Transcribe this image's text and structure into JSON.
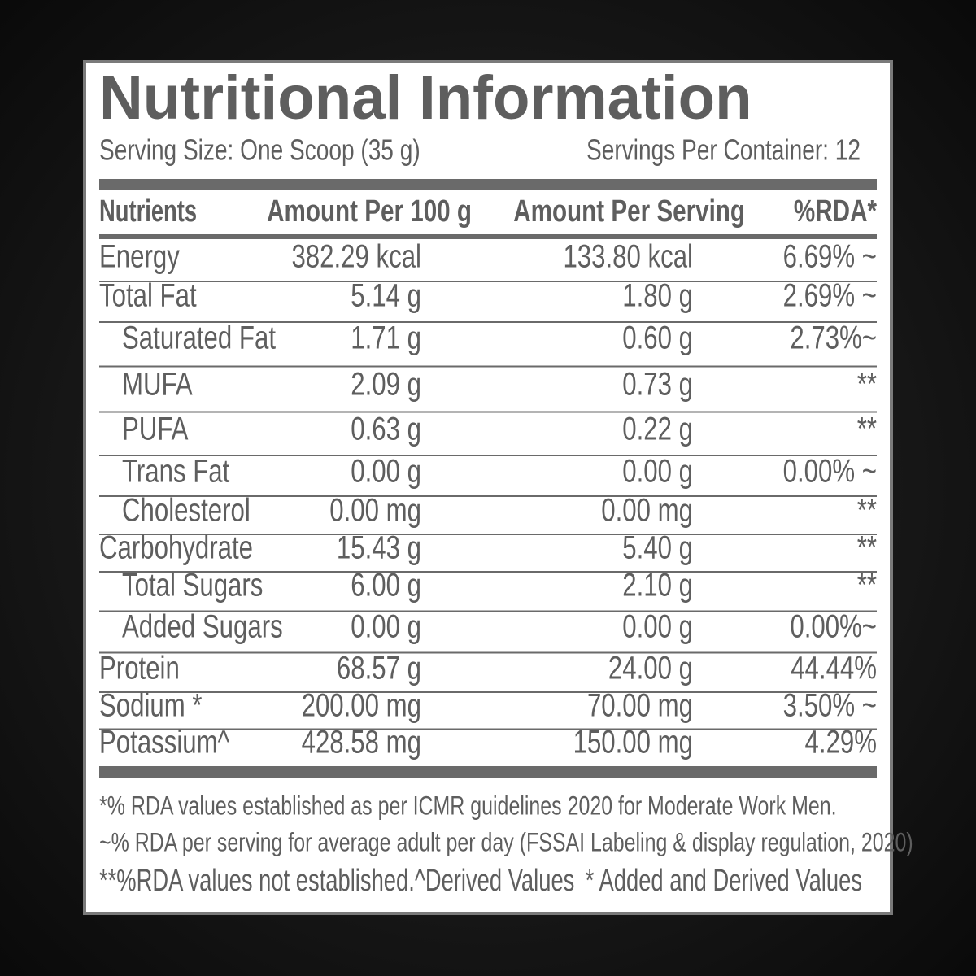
{
  "header": {
    "title": "Nutritional Information",
    "serving_size": "Serving Size: One Scoop (35 g)",
    "servings_per_container": "Servings Per Container: 12"
  },
  "table": {
    "columns": [
      "Nutrients",
      "Amount Per 100 g",
      "Amount Per Serving",
      "%RDA*"
    ],
    "rows": [
      {
        "cells": [
          "Energy",
          "382.29 kcal",
          "133.80 kcal",
          "6.69% ~"
        ],
        "indented": false
      },
      {
        "cells": [
          "Total Fat",
          "5.14 g",
          "1.80 g",
          "2.69% ~"
        ],
        "indented": false
      },
      {
        "cells": [
          "Saturated Fat",
          "1.71 g",
          "0.60 g",
          "2.73%~"
        ],
        "indented": true
      },
      {
        "cells": [
          "MUFA",
          "2.09 g",
          "0.73 g",
          "**"
        ],
        "indented": true
      },
      {
        "cells": [
          "PUFA",
          "0.63 g",
          "0.22 g",
          "**"
        ],
        "indented": true
      },
      {
        "cells": [
          "Trans Fat",
          "0.00 g",
          "0.00 g",
          "0.00% ~"
        ],
        "indented": true
      },
      {
        "cells": [
          "Cholesterol",
          "0.00 mg",
          "0.00 mg",
          "**"
        ],
        "indented": true
      },
      {
        "cells": [
          "Carbohydrate",
          "15.43 g",
          "5.40 g",
          "**"
        ],
        "indented": false
      },
      {
        "cells": [
          "Total Sugars",
          "6.00 g",
          "2.10 g",
          "**"
        ],
        "indented": true
      },
      {
        "cells": [
          "Added Sugars",
          "0.00 g",
          "0.00 g",
          "0.00%~"
        ],
        "indented": true
      },
      {
        "cells": [
          "Protein",
          "68.57 g",
          "24.00 g",
          "44.44%"
        ],
        "indented": false
      },
      {
        "cells": [
          "Sodium *",
          "200.00 mg",
          "70.00 mg",
          "3.50% ~"
        ],
        "indented": false
      },
      {
        "cells": [
          "Potassium^",
          "428.58 mg",
          "150.00 mg",
          "4.29%"
        ],
        "indented": false
      }
    ]
  },
  "footnotes": {
    "line1": "*% RDA values established as per ICMR guidelines 2020 for Moderate Work Men.",
    "line2": "~% RDA per serving for average adult per day (FSSAI Labeling & display regulation, 2020)",
    "line3": [
      "**%RDA values not established.",
      "^Derived Values",
      "* Added and Derived Values"
    ]
  }
}
